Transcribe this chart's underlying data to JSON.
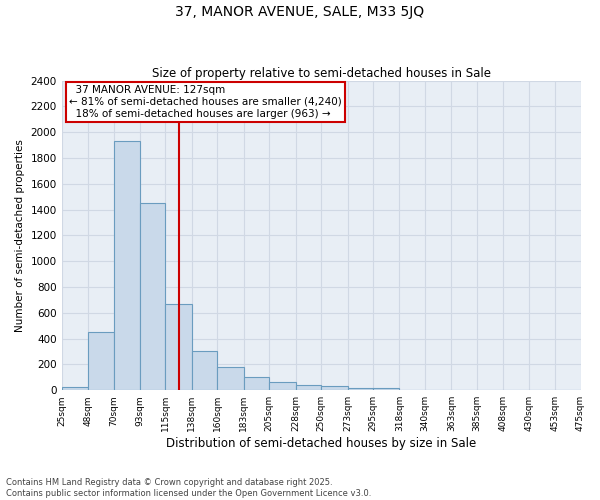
{
  "title": "37, MANOR AVENUE, SALE, M33 5JQ",
  "subtitle": "Size of property relative to semi-detached houses in Sale",
  "xlabel": "Distribution of semi-detached houses by size in Sale",
  "ylabel": "Number of semi-detached properties",
  "property_size": 127,
  "property_label": "37 MANOR AVENUE: 127sqm",
  "pct_smaller": 81,
  "count_smaller": 4240,
  "pct_larger": 18,
  "count_larger": 963,
  "bin_edges": [
    25,
    48,
    70,
    93,
    115,
    138,
    160,
    183,
    205,
    228,
    250,
    273,
    295,
    318,
    340,
    363,
    385,
    408,
    430,
    453,
    475
  ],
  "bin_labels": [
    "25sqm",
    "48sqm",
    "70sqm",
    "93sqm",
    "115sqm",
    "138sqm",
    "160sqm",
    "183sqm",
    "205sqm",
    "228sqm",
    "250sqm",
    "273sqm",
    "295sqm",
    "318sqm",
    "340sqm",
    "363sqm",
    "385sqm",
    "408sqm",
    "430sqm",
    "453sqm",
    "475sqm"
  ],
  "counts": [
    25,
    455,
    1930,
    1455,
    670,
    305,
    180,
    100,
    65,
    40,
    30,
    20,
    15,
    5,
    3,
    2,
    1,
    0,
    0,
    0
  ],
  "bar_color": "#c9d9ea",
  "bar_edge_color": "#6a9cbf",
  "vline_color": "#cc0000",
  "legend_box_color": "#cc0000",
  "background_color": "#e8eef5",
  "grid_color": "#d0d8e4",
  "footer_line1": "Contains HM Land Registry data © Crown copyright and database right 2025.",
  "footer_line2": "Contains public sector information licensed under the Open Government Licence v3.0.",
  "ylim": [
    0,
    2400
  ],
  "yticks": [
    0,
    200,
    400,
    600,
    800,
    1000,
    1200,
    1400,
    1600,
    1800,
    2000,
    2200,
    2400
  ]
}
